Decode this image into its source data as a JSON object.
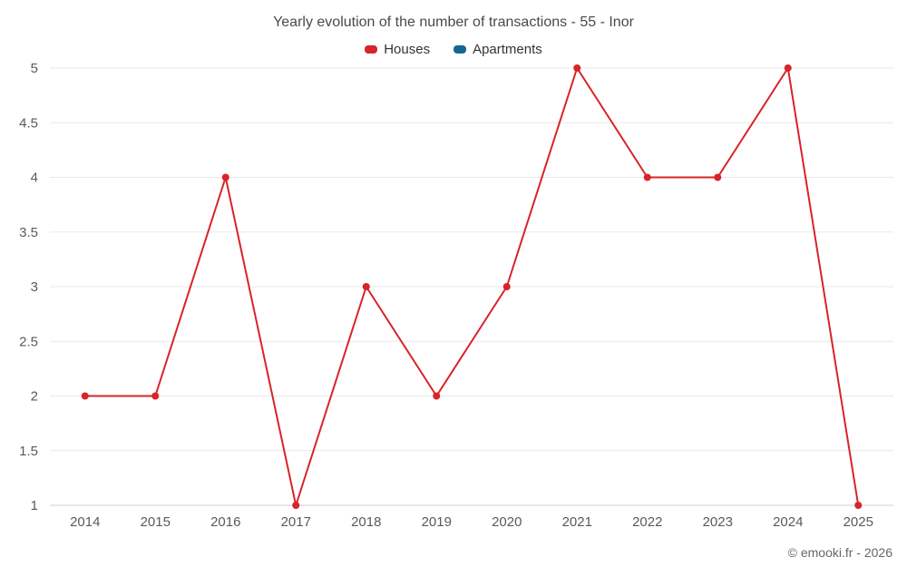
{
  "title": "Yearly evolution of the number of transactions - 55 - Inor",
  "footer": "© emooki.fr - 2026",
  "legend": [
    {
      "label": "Houses",
      "color": "#d8232a"
    },
    {
      "label": "Apartments",
      "color": "#15688f"
    }
  ],
  "chart_data": {
    "type": "line",
    "title": "Yearly evolution of the number of transactions - 55 - Inor",
    "categories": [
      "2014",
      "2015",
      "2016",
      "2017",
      "2018",
      "2019",
      "2020",
      "2021",
      "2022",
      "2023",
      "2024",
      "2025"
    ],
    "series": [
      {
        "name": "Houses",
        "color": "#d8232a",
        "values": [
          2,
          2,
          4,
          1,
          3,
          2,
          3,
          5,
          4,
          4,
          5,
          1
        ]
      },
      {
        "name": "Apartments",
        "color": "#15688f",
        "values": []
      }
    ],
    "xlabel": "",
    "ylabel": "",
    "ylim": [
      1,
      5
    ],
    "yticks": [
      1,
      1.5,
      2,
      2.5,
      3,
      3.5,
      4,
      4.5,
      5
    ],
    "grid": true,
    "legend_position": "top",
    "grid_color": "#e8e8e8",
    "axis_line_color": "#cccccc",
    "tick_label_color": "#5a5a5a",
    "marker_radius": 4,
    "line_width": 2
  }
}
